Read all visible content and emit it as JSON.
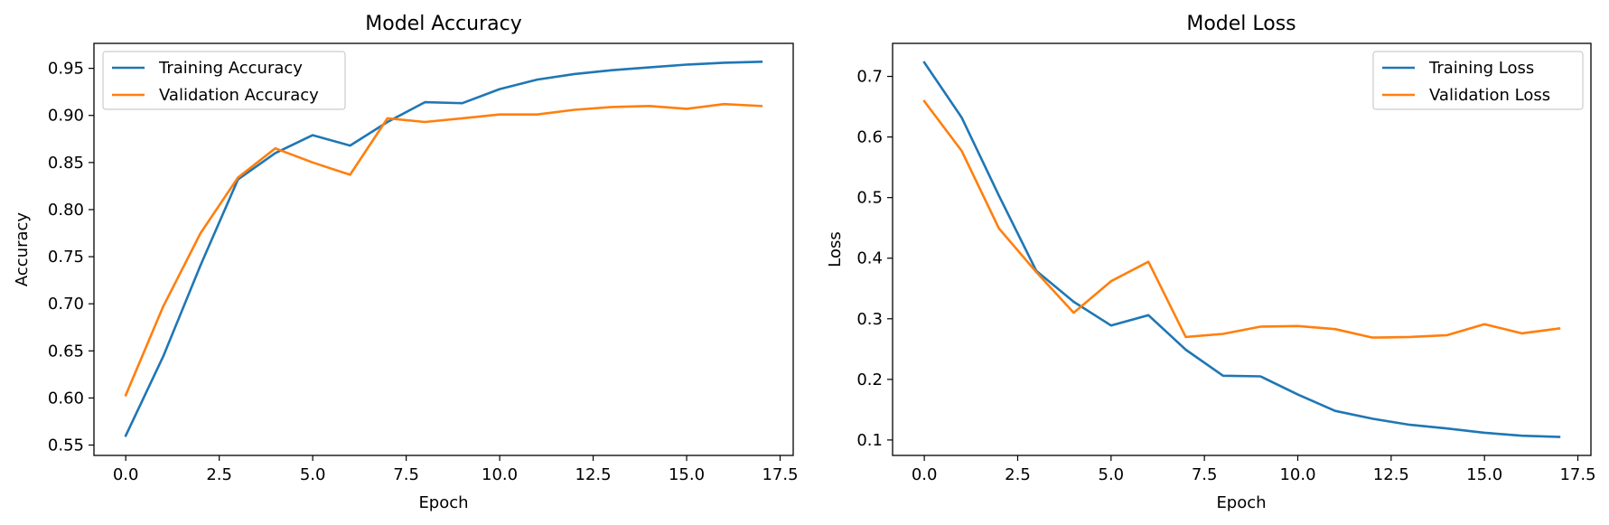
{
  "chart_data": [
    {
      "type": "line",
      "title": "Model Accuracy",
      "xlabel": "Epoch",
      "ylabel": "Accuracy",
      "xlim": [
        -0.85,
        17.85
      ],
      "ylim": [
        0.539,
        0.9765
      ],
      "xticks": [
        0.0,
        2.5,
        5.0,
        7.5,
        10.0,
        12.5,
        15.0,
        17.5
      ],
      "xtick_labels": [
        "0.0",
        "2.5",
        "5.0",
        "7.5",
        "10.0",
        "12.5",
        "15.0",
        "17.5"
      ],
      "yticks": [
        0.55,
        0.6,
        0.65,
        0.7,
        0.75,
        0.8,
        0.85,
        0.9,
        0.95
      ],
      "ytick_labels": [
        "0.55",
        "0.60",
        "0.65",
        "0.70",
        "0.75",
        "0.80",
        "0.85",
        "0.90",
        "0.95"
      ],
      "legend_position": "top-left",
      "grid": false,
      "x": [
        0,
        1,
        2,
        3,
        4,
        5,
        6,
        7,
        8,
        9,
        10,
        11,
        12,
        13,
        14,
        15,
        16,
        17
      ],
      "series": [
        {
          "name": "Training Accuracy",
          "color": "#1f77b4",
          "values": [
            0.56,
            0.644,
            0.741,
            0.832,
            0.86,
            0.879,
            0.868,
            0.893,
            0.914,
            0.913,
            0.928,
            0.938,
            0.944,
            0.948,
            0.951,
            0.954,
            0.956,
            0.957
          ]
        },
        {
          "name": "Validation Accuracy",
          "color": "#ff7f0e",
          "values": [
            0.603,
            0.697,
            0.775,
            0.834,
            0.865,
            0.85,
            0.837,
            0.897,
            0.893,
            0.897,
            0.901,
            0.901,
            0.906,
            0.909,
            0.91,
            0.907,
            0.912,
            0.91
          ]
        }
      ]
    },
    {
      "type": "line",
      "title": "Model Loss",
      "xlabel": "Epoch",
      "ylabel": "Loss",
      "xlim": [
        -0.85,
        17.85
      ],
      "ylim": [
        0.0745,
        0.7545
      ],
      "xticks": [
        0.0,
        2.5,
        5.0,
        7.5,
        10.0,
        12.5,
        15.0,
        17.5
      ],
      "xtick_labels": [
        "0.0",
        "2.5",
        "5.0",
        "7.5",
        "10.0",
        "12.5",
        "15.0",
        "17.5"
      ],
      "yticks": [
        0.1,
        0.2,
        0.3,
        0.4,
        0.5,
        0.6,
        0.7
      ],
      "ytick_labels": [
        "0.1",
        "0.2",
        "0.3",
        "0.4",
        "0.5",
        "0.6",
        "0.7"
      ],
      "legend_position": "top-right",
      "grid": false,
      "x": [
        0,
        1,
        2,
        3,
        4,
        5,
        6,
        7,
        8,
        9,
        10,
        11,
        12,
        13,
        14,
        15,
        16,
        17
      ],
      "series": [
        {
          "name": "Training Loss",
          "color": "#1f77b4",
          "values": [
            0.723,
            0.632,
            0.503,
            0.379,
            0.328,
            0.289,
            0.306,
            0.249,
            0.206,
            0.205,
            0.175,
            0.148,
            0.135,
            0.125,
            0.119,
            0.112,
            0.107,
            0.105
          ]
        },
        {
          "name": "Validation Loss",
          "color": "#ff7f0e",
          "values": [
            0.659,
            0.577,
            0.449,
            0.377,
            0.31,
            0.362,
            0.394,
            0.27,
            0.275,
            0.287,
            0.288,
            0.283,
            0.269,
            0.27,
            0.273,
            0.291,
            0.276,
            0.284
          ]
        }
      ]
    }
  ]
}
